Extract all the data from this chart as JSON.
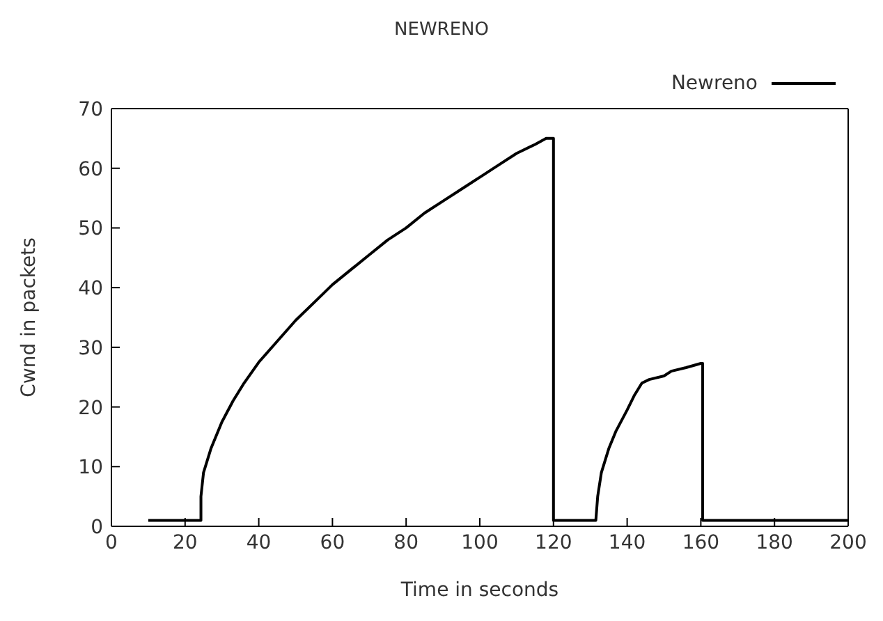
{
  "chart_data": {
    "type": "line",
    "title": "NEWRENO",
    "xlabel": "Time in seconds",
    "ylabel": "Cwnd in packets",
    "xlim": [
      0,
      200
    ],
    "xticks": [
      0,
      20,
      40,
      60,
      80,
      100,
      120,
      140,
      160,
      180,
      200
    ],
    "ylim": [
      0,
      70
    ],
    "yticks": [
      0,
      10,
      20,
      30,
      40,
      50,
      60,
      70
    ],
    "legend": "top right",
    "grid": false,
    "marker": "none",
    "line_style": "solid",
    "series": [
      {
        "name": "Newreno",
        "color": "#000000",
        "x": [
          10,
          24.3,
          24.3,
          25,
          27,
          30,
          33,
          36,
          40,
          45,
          50,
          55,
          60,
          65,
          70,
          75,
          80,
          85,
          90,
          95,
          100,
          105,
          110,
          115,
          118,
          120,
          120,
          131.5,
          132,
          133,
          135,
          137,
          140,
          142,
          144,
          146,
          150,
          152,
          156,
          160,
          160.5,
          160.5,
          200
        ],
        "values": [
          1,
          1,
          5,
          9,
          13,
          17.5,
          21,
          24,
          27.5,
          31,
          34.5,
          37.5,
          40.5,
          43,
          45.5,
          48,
          50,
          52.5,
          54.5,
          56.5,
          58.5,
          60.5,
          62.5,
          64,
          65,
          65,
          1,
          1,
          5,
          9,
          13,
          16,
          19.5,
          22,
          24,
          24.6,
          25.2,
          26,
          26.6,
          27.3,
          27.3,
          1,
          1
        ]
      }
    ]
  }
}
